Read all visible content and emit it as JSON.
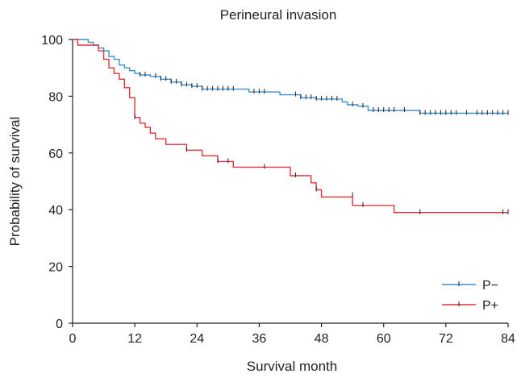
{
  "chart_data": {
    "type": "line",
    "subtype": "kaplan-meier step",
    "title": "Perineural invasion",
    "xlabel": "Survival month",
    "ylabel": "Probability of survival",
    "xlim": [
      0,
      84
    ],
    "ylim": [
      0,
      100
    ],
    "xticks": [
      "0",
      "12",
      "24",
      "36",
      "48",
      "60",
      "72",
      "84"
    ],
    "yticks": [
      "0",
      "20",
      "40",
      "60",
      "80",
      "100"
    ],
    "grid": false,
    "legend_position": "bottom-right",
    "series": [
      {
        "name": "P−",
        "color": "#3d8fcc",
        "steps": [
          [
            0,
            100
          ],
          [
            3,
            99
          ],
          [
            4,
            98
          ],
          [
            5,
            97
          ],
          [
            6,
            96
          ],
          [
            7,
            94
          ],
          [
            8,
            93
          ],
          [
            9,
            91
          ],
          [
            10,
            90
          ],
          [
            11,
            89
          ],
          [
            12,
            88
          ],
          [
            13,
            87.5
          ],
          [
            15,
            87
          ],
          [
            17,
            86
          ],
          [
            19,
            85
          ],
          [
            21,
            84
          ],
          [
            23,
            83.5
          ],
          [
            25,
            82.5
          ],
          [
            34,
            81.5
          ],
          [
            40,
            80.5
          ],
          [
            44,
            79.5
          ],
          [
            47,
            79
          ],
          [
            52,
            78
          ],
          [
            53,
            77
          ],
          [
            55,
            76.5
          ],
          [
            57,
            75
          ],
          [
            67,
            74
          ],
          [
            84,
            74
          ]
        ],
        "censored": [
          [
            13,
            87.5
          ],
          [
            14,
            87.5
          ],
          [
            16,
            87
          ],
          [
            17,
            86
          ],
          [
            18,
            86
          ],
          [
            19,
            85
          ],
          [
            20,
            85
          ],
          [
            21,
            84
          ],
          [
            22,
            84
          ],
          [
            23,
            83.5
          ],
          [
            24,
            83.5
          ],
          [
            25,
            82.5
          ],
          [
            26,
            82.5
          ],
          [
            27,
            82.5
          ],
          [
            28,
            82.5
          ],
          [
            29,
            82.5
          ],
          [
            30,
            82.5
          ],
          [
            31,
            82.5
          ],
          [
            35,
            81.5
          ],
          [
            36,
            81.5
          ],
          [
            37,
            81.5
          ],
          [
            43,
            80.5
          ],
          [
            44,
            79.5
          ],
          [
            45,
            79.5
          ],
          [
            46,
            79.5
          ],
          [
            47,
            79
          ],
          [
            48,
            79
          ],
          [
            49,
            79
          ],
          [
            50,
            79
          ],
          [
            51,
            79
          ],
          [
            54,
            77
          ],
          [
            56,
            76.5
          ],
          [
            58,
            75
          ],
          [
            59,
            75
          ],
          [
            60,
            75
          ],
          [
            61,
            75
          ],
          [
            62,
            75
          ],
          [
            64,
            75
          ],
          [
            67,
            74
          ],
          [
            68,
            74
          ],
          [
            69,
            74
          ],
          [
            70,
            74
          ],
          [
            71,
            74
          ],
          [
            72,
            74
          ],
          [
            73,
            74
          ],
          [
            74,
            74
          ],
          [
            76,
            74
          ],
          [
            78,
            74
          ],
          [
            79,
            74
          ],
          [
            80,
            74
          ],
          [
            81,
            74
          ],
          [
            82,
            74
          ],
          [
            83,
            74
          ],
          [
            84,
            74
          ]
        ]
      },
      {
        "name": "P+",
        "color": "#e0303a",
        "steps": [
          [
            0,
            100
          ],
          [
            1,
            98
          ],
          [
            5,
            96
          ],
          [
            6,
            93
          ],
          [
            7,
            90
          ],
          [
            8,
            88
          ],
          [
            9,
            86
          ],
          [
            10,
            83
          ],
          [
            11,
            79.5
          ],
          [
            12,
            72.5
          ],
          [
            13,
            70.5
          ],
          [
            14,
            69
          ],
          [
            15,
            67
          ],
          [
            16,
            65
          ],
          [
            18,
            63
          ],
          [
            22,
            61
          ],
          [
            25,
            59
          ],
          [
            28,
            57
          ],
          [
            31,
            55
          ],
          [
            42,
            52
          ],
          [
            46,
            49.5
          ],
          [
            47,
            47
          ],
          [
            48,
            44.5
          ],
          [
            54,
            41.5
          ],
          [
            62,
            39
          ],
          [
            84,
            39
          ]
        ],
        "censored": [
          [
            12,
            72.5
          ],
          [
            22,
            61
          ],
          [
            28,
            57
          ],
          [
            30,
            57
          ],
          [
            37,
            55
          ],
          [
            43,
            52
          ],
          [
            47,
            47
          ],
          [
            54,
            45
          ],
          [
            56,
            41.5
          ],
          [
            67,
            39
          ],
          [
            83,
            39
          ],
          [
            84,
            39
          ]
        ]
      }
    ]
  }
}
